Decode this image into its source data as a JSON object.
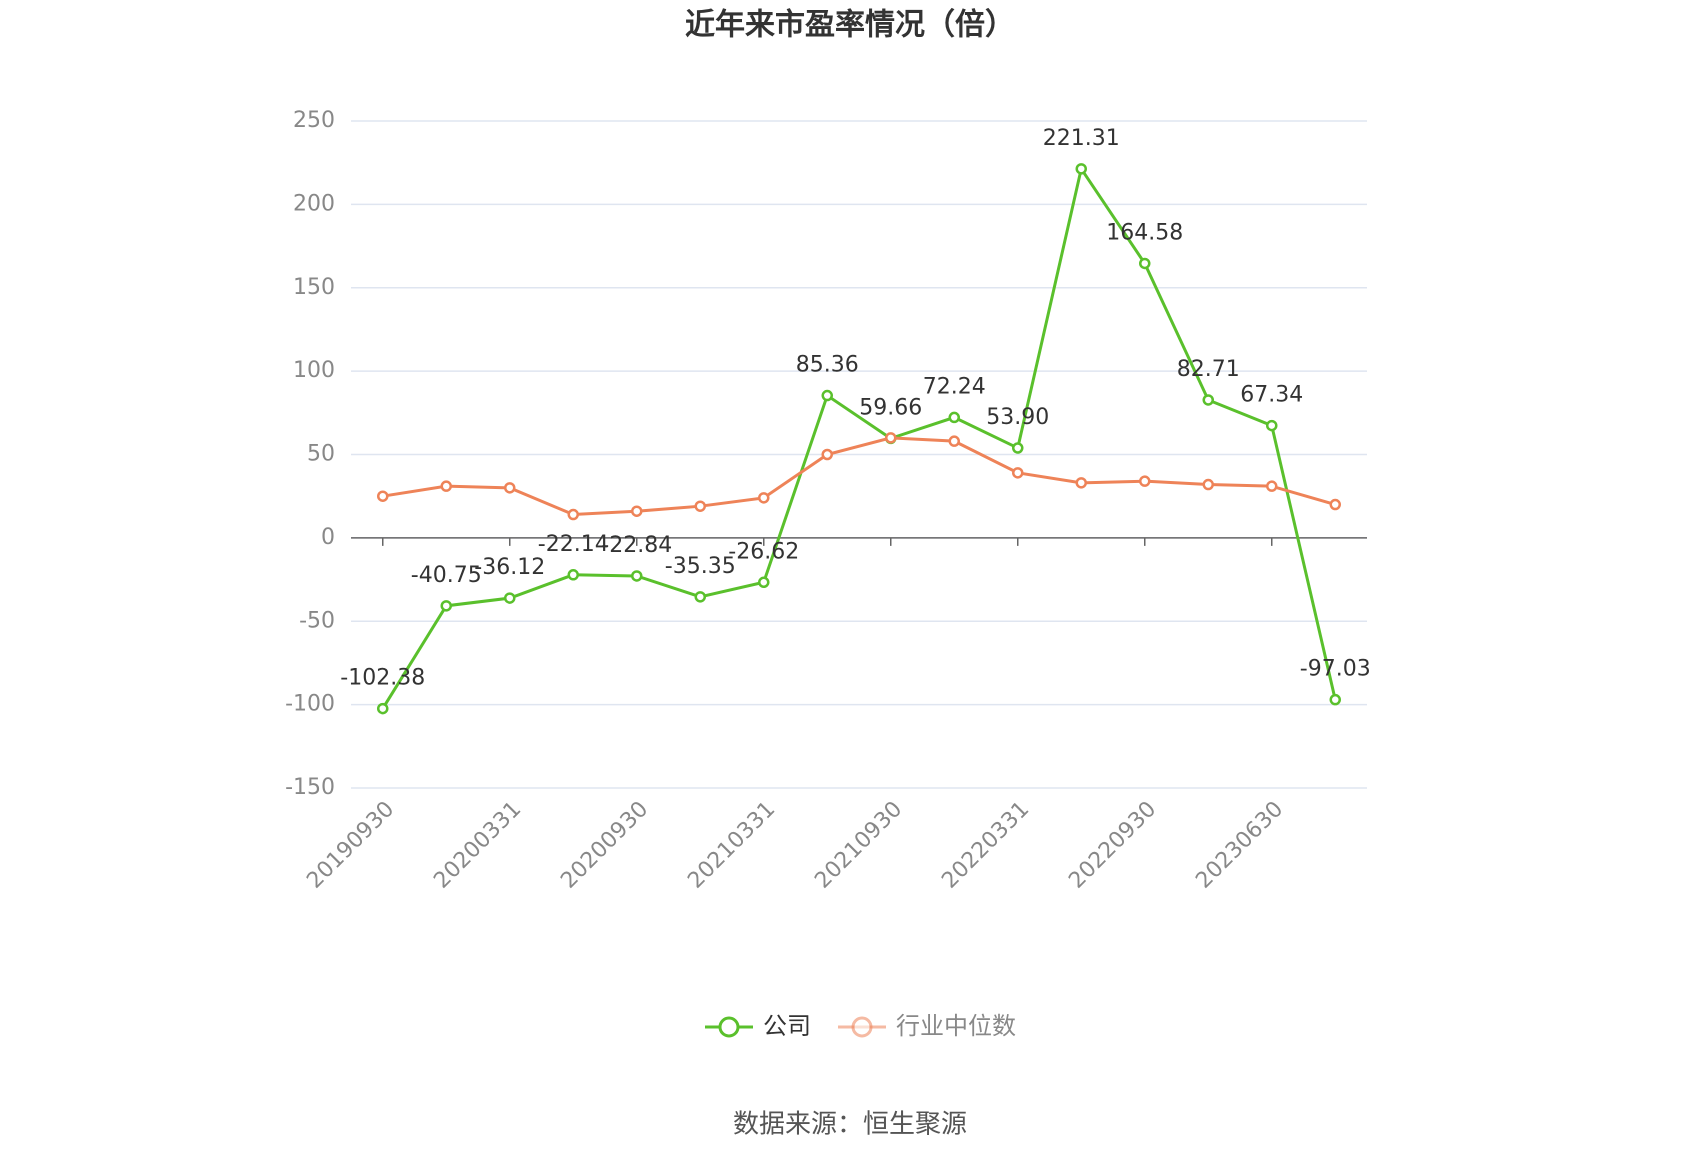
{
  "chart_data": {
    "type": "line",
    "title": "近年来市盈率情况（倍）",
    "categories": [
      "20190930",
      null,
      "20200331",
      null,
      "20200930",
      null,
      "20210331",
      null,
      "20210930",
      null,
      "20220331",
      null,
      "20220930",
      null,
      "20230630",
      null
    ],
    "series": [
      {
        "name": "公司",
        "color": "#5ac02c",
        "values": [
          -102.38,
          -40.75,
          -36.12,
          -22.14,
          -22.84,
          -35.35,
          -26.62,
          85.36,
          59.66,
          72.24,
          53.9,
          221.31,
          164.58,
          82.71,
          67.34,
          -97.03
        ],
        "value_labels": [
          "-102.38",
          "-40.75",
          "-36.12",
          "-22.14",
          "-22.84",
          "-35.35",
          "-26.62",
          "85.36",
          "59.66",
          "72.24",
          "53.90",
          "221.31",
          "164.58",
          "82.71",
          "67.34",
          "-97.03"
        ]
      },
      {
        "name": "行业中位数",
        "color": "#ee8358",
        "values": [
          25,
          31,
          30,
          14,
          16,
          19,
          24,
          50,
          60,
          58,
          39,
          33,
          34,
          32,
          31,
          20
        ]
      }
    ],
    "ylim": [
      -150,
      250
    ],
    "yticks": [
      -150,
      -100,
      -50,
      0,
      50,
      100,
      150,
      200,
      250
    ],
    "grid": true,
    "source": "数据来源：恒生聚源"
  }
}
